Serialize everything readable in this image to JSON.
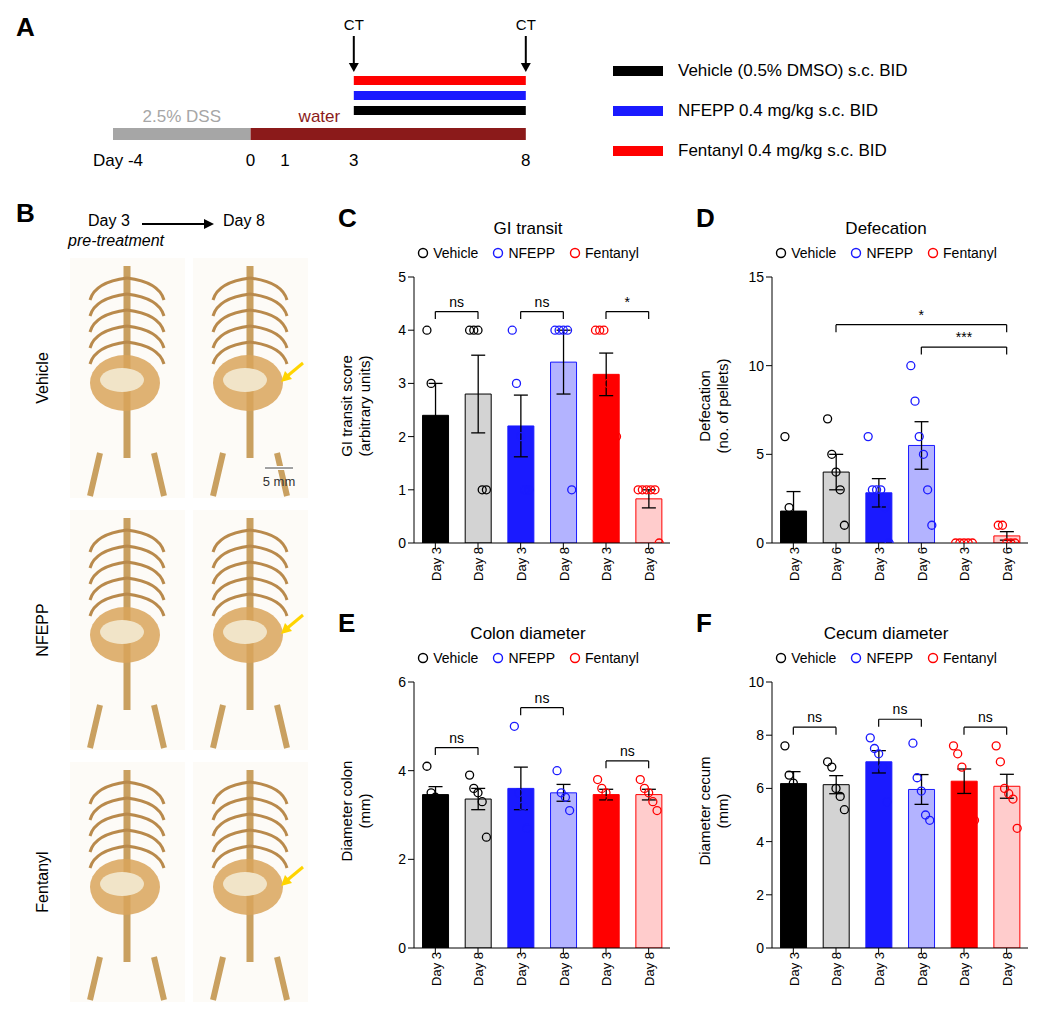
{
  "timeline": {
    "panel": "A",
    "day_ticks": [
      {
        "value": -4,
        "label": "Day -4"
      },
      0,
      1,
      3,
      8
    ],
    "segments": [
      {
        "label": "2.5% DSS",
        "from": -4,
        "to": 0,
        "color": "#a6a6a6"
      },
      {
        "label": "water",
        "from": 0,
        "to": 8,
        "color": "#8b1a1a"
      }
    ],
    "scans": [
      {
        "label": "CT",
        "day": 3
      },
      {
        "label": "CT",
        "day": 8
      }
    ],
    "treatments": [
      {
        "label": "Vehicle (0.5% DMSO) s.c. BID",
        "color": "#000000",
        "from": 3,
        "to": 8
      },
      {
        "label": "NFEPP 0.4 mg/kg s.c. BID",
        "color": "#1a1aff",
        "from": 3,
        "to": 8
      },
      {
        "label": "Fentanyl 0.4 mg/kg s.c. BID",
        "color": "#ff0000",
        "from": 3,
        "to": 8
      }
    ]
  },
  "images": {
    "panel": "B",
    "time_from": "Day 3",
    "time_to": "Day 8",
    "subtitle": "pre-treatment",
    "rows": [
      "Vehicle",
      "NFEPP",
      "Fentanyl"
    ],
    "scale_bar": "5 mm"
  },
  "chart_data": [
    {
      "panel": "C",
      "type": "bar",
      "title": "GI transit",
      "y_label": [
        "GI transit score",
        "(arbitrary units)"
      ],
      "ylim": [
        0,
        5
      ],
      "yticks": [
        0,
        1,
        2,
        3,
        4,
        5
      ],
      "series": [
        {
          "name": "Vehicle",
          "color": "#000000",
          "colors": [
            "#000000",
            "#d3d3d3"
          ],
          "categories": [
            "Day 3",
            "Day 8"
          ],
          "values": [
            2.4,
            2.8
          ],
          "errors": [
            0.6,
            0.73
          ],
          "points": [
            [
              4,
              3,
              2,
              2,
              1
            ],
            [
              4,
              4,
              4,
              1,
              1
            ]
          ]
        },
        {
          "name": "NFEPP",
          "color": "#1a1aff",
          "colors": [
            "#1a1aff",
            "#b3b3ff"
          ],
          "categories": [
            "Day 3",
            "Day 8"
          ],
          "values": [
            2.2,
            3.4
          ],
          "errors": [
            0.58,
            0.6
          ],
          "points": [
            [
              4,
              3,
              2,
              1,
              1
            ],
            [
              4,
              4,
              4,
              4,
              1
            ]
          ]
        },
        {
          "name": "Fentanyl",
          "color": "#ff0000",
          "colors": [
            "#ff0000",
            "#ffcccc"
          ],
          "categories": [
            "Day 3",
            "Day 8"
          ],
          "values": [
            3.17,
            0.83
          ],
          "errors": [
            0.4,
            0.17
          ],
          "points": [
            [
              4,
              4,
              4,
              3,
              2,
              2
            ],
            [
              1,
              1,
              1,
              1,
              1,
              0
            ]
          ]
        }
      ],
      "comparisons": [
        {
          "from": 0,
          "to": 1,
          "label": "ns"
        },
        {
          "from": 2,
          "to": 3,
          "label": "ns"
        },
        {
          "from": 4,
          "to": 5,
          "label": "*"
        }
      ]
    },
    {
      "panel": "D",
      "type": "bar",
      "title": "Defecation",
      "y_label": [
        "Defecation",
        "(no. of pellets)"
      ],
      "ylim": [
        0,
        15
      ],
      "yticks": [
        0,
        5,
        10,
        15
      ],
      "series": [
        {
          "name": "Vehicle",
          "color": "#000000",
          "colors": [
            "#000000",
            "#d3d3d3"
          ],
          "categories": [
            "Day 3",
            "Day 6"
          ],
          "values": [
            1.8,
            4.0
          ],
          "errors": [
            1.1,
            1.0
          ],
          "points": [
            [
              6,
              2,
              1,
              0,
              0
            ],
            [
              7,
              5,
              4,
              3,
              1
            ]
          ]
        },
        {
          "name": "NFEPP",
          "color": "#1a1aff",
          "colors": [
            "#1a1aff",
            "#b3b3ff"
          ],
          "categories": [
            "Day 3",
            "Day 6"
          ],
          "values": [
            2.83,
            5.5
          ],
          "errors": [
            0.8,
            1.34
          ],
          "points": [
            [
              6,
              3,
              3,
              3,
              2,
              0
            ],
            [
              10,
              8,
              6,
              5,
              3,
              1
            ]
          ]
        },
        {
          "name": "Fentanyl",
          "color": "#ff0000",
          "colors": [
            "#ff0000",
            "#ffcccc"
          ],
          "categories": [
            "Day 3",
            "Day 6"
          ],
          "values": [
            0,
            0.4
          ],
          "errors": [
            0,
            0.24
          ],
          "points": [
            [
              0,
              0,
              0,
              0,
              0
            ],
            [
              1,
              1,
              0,
              0,
              0
            ]
          ]
        }
      ],
      "comparisons": [
        {
          "from": 1,
          "to": 5,
          "label": "*"
        },
        {
          "from": 3,
          "to": 5,
          "label": "***"
        }
      ]
    },
    {
      "panel": "E",
      "type": "bar",
      "title": "Colon diameter",
      "y_label": [
        "Diameter colon",
        "(mm)"
      ],
      "ylim": [
        0,
        6
      ],
      "yticks": [
        0,
        2,
        4,
        6
      ],
      "series": [
        {
          "name": "Vehicle",
          "color": "#000000",
          "colors": [
            "#000000",
            "#d3d3d3"
          ],
          "categories": [
            "Day 3",
            "Day 8"
          ],
          "values": [
            3.46,
            3.36
          ],
          "errors": [
            0.18,
            0.24
          ],
          "points": [
            [
              4.1,
              3.5,
              3.4,
              3.2,
              3.1
            ],
            [
              3.9,
              3.6,
              3.5,
              3.3,
              2.5
            ]
          ]
        },
        {
          "name": "NFEPP",
          "color": "#1a1aff",
          "colors": [
            "#1a1aff",
            "#b3b3ff"
          ],
          "categories": [
            "Day 3",
            "Day 8"
          ],
          "values": [
            3.6,
            3.5
          ],
          "errors": [
            0.48,
            0.19
          ],
          "points": [
            [
              5.0,
              3.5,
              3.2,
              2.7
            ],
            [
              4.0,
              3.5,
              3.4,
              3.1
            ]
          ]
        },
        {
          "name": "Fentanyl",
          "color": "#ff0000",
          "colors": [
            "#ff0000",
            "#ffcccc"
          ],
          "categories": [
            "Day 3",
            "Day 8"
          ],
          "values": [
            3.46,
            3.46
          ],
          "errors": [
            0.12,
            0.12
          ],
          "points": [
            [
              3.8,
              3.6,
              3.5,
              3.3,
              3.1
            ],
            [
              3.8,
              3.6,
              3.5,
              3.3,
              3.1
            ]
          ]
        }
      ],
      "comparisons": [
        {
          "from": 0,
          "to": 1,
          "label": "ns"
        },
        {
          "from": 2,
          "to": 3,
          "label": "ns"
        },
        {
          "from": 4,
          "to": 5,
          "label": "ns"
        }
      ]
    },
    {
      "panel": "F",
      "type": "bar",
      "title": "Cecum diameter",
      "y_label": [
        "Diameter cecum",
        "(mm)"
      ],
      "ylim": [
        0,
        10
      ],
      "yticks": [
        0,
        2,
        4,
        6,
        8,
        10
      ],
      "series": [
        {
          "name": "Vehicle",
          "color": "#000000",
          "colors": [
            "#000000",
            "#d3d3d3"
          ],
          "categories": [
            "Day 3",
            "Day 8"
          ],
          "values": [
            6.18,
            6.14
          ],
          "errors": [
            0.45,
            0.34
          ],
          "points": [
            [
              7.6,
              6.5,
              6.2,
              5.6,
              5.0
            ],
            [
              7.0,
              6.8,
              6.0,
              5.7,
              5.2
            ]
          ]
        },
        {
          "name": "NFEPP",
          "color": "#1a1aff",
          "colors": [
            "#1a1aff",
            "#b3b3ff"
          ],
          "categories": [
            "Day 3",
            "Day 8"
          ],
          "values": [
            7.0,
            5.96
          ],
          "errors": [
            0.42,
            0.56
          ],
          "points": [
            [
              7.9,
              7.5,
              7.3,
              6.8,
              5.5
            ],
            [
              7.7,
              6.4,
              5.9,
              5.0,
              4.8
            ]
          ]
        },
        {
          "name": "Fentanyl",
          "color": "#ff0000",
          "colors": [
            "#ff0000",
            "#ffcccc"
          ],
          "categories": [
            "Day 3",
            "Day 8"
          ],
          "values": [
            6.27,
            6.08
          ],
          "errors": [
            0.46,
            0.45
          ],
          "points": [
            [
              7.6,
              7.3,
              6.8,
              5.6,
              5.5,
              4.8
            ],
            [
              7.6,
              7.0,
              6.0,
              5.8,
              5.6,
              4.5
            ]
          ]
        }
      ],
      "comparisons": [
        {
          "from": 0,
          "to": 1,
          "label": "ns"
        },
        {
          "from": 2,
          "to": 3,
          "label": "ns"
        },
        {
          "from": 4,
          "to": 5,
          "label": "ns"
        }
      ]
    }
  ]
}
